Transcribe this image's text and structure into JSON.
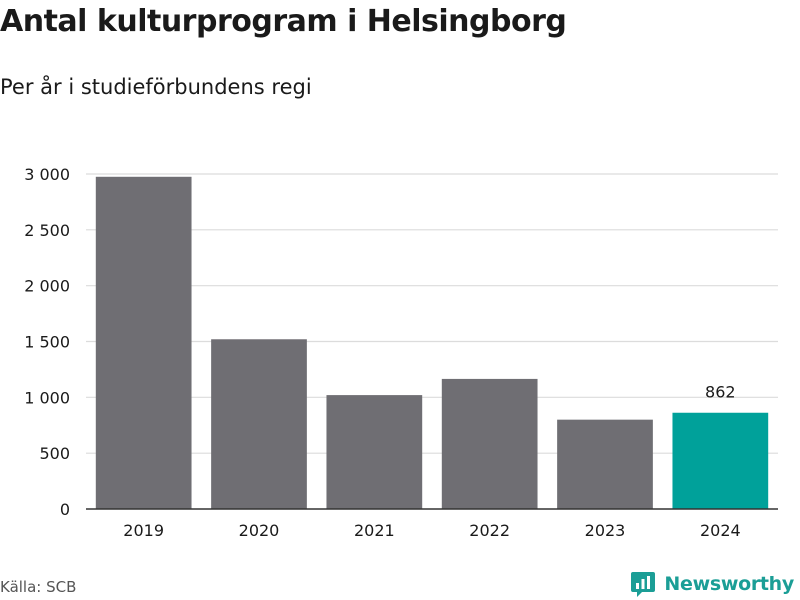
{
  "title": "Antal kulturprogram i Helsingborg",
  "subtitle": "Per år i studieförbundens regi",
  "source": "Källa: SCB",
  "brand": "Newsworthy",
  "colors": {
    "bar": "#6f6e73",
    "highlight": "#00a19a",
    "grid": "#dcdcdc",
    "axis": "#333333",
    "brand": "#1b9e96"
  },
  "chart_data": {
    "type": "bar",
    "categories": [
      "2019",
      "2020",
      "2021",
      "2022",
      "2023",
      "2024"
    ],
    "values": [
      2975,
      1520,
      1020,
      1165,
      800,
      862
    ],
    "highlight_index": 5,
    "data_labels": [
      null,
      null,
      null,
      null,
      null,
      "862"
    ],
    "ylim": [
      0,
      3000
    ],
    "yticks": [
      0,
      500,
      1000,
      1500,
      2000,
      2500,
      3000
    ],
    "ytick_labels": [
      "0",
      "500",
      "1 000",
      "1 500",
      "2 000",
      "2 500",
      "3 000"
    ],
    "grid": true,
    "xlabel": "",
    "ylabel": ""
  }
}
